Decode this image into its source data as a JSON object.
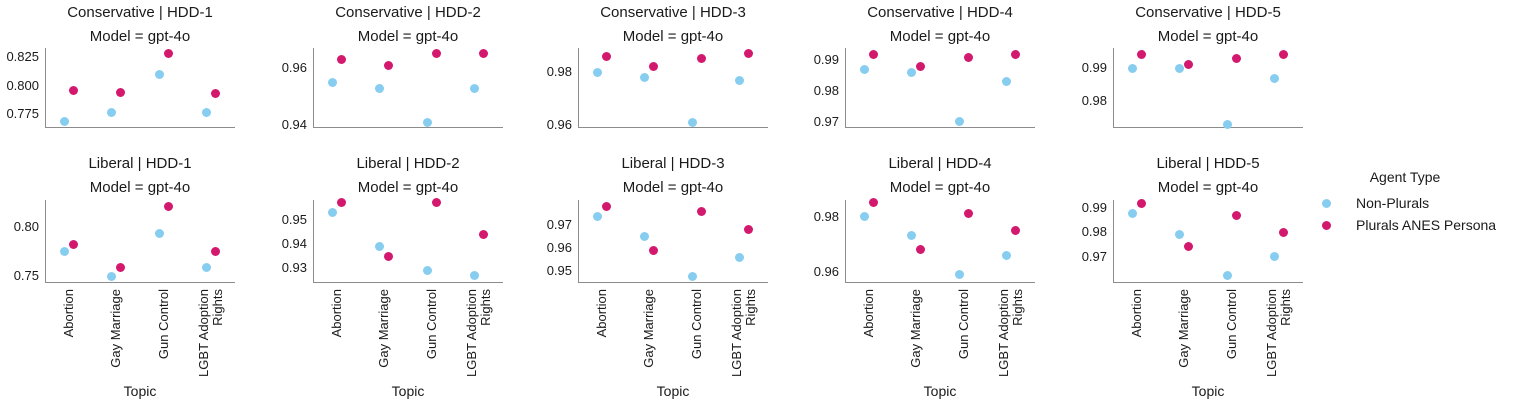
{
  "figure": {
    "xlabel": "Topic",
    "model_subtitle": "Model = gpt-4o",
    "categories": [
      "Abortion",
      "Gay Marriage",
      "Gun Control",
      "LGBT Adoption Rights"
    ],
    "category_display": [
      [
        "Abortion"
      ],
      [
        "Gay Marriage"
      ],
      [
        "Gun Control"
      ],
      [
        "LGBT Adoption",
        "Rights"
      ]
    ],
    "legend": {
      "title": "Agent Type",
      "entries": [
        {
          "label": "Non-Plurals",
          "color": "#87CDF0"
        },
        {
          "label": "Plurals ANES Persona",
          "color": "#D2196D"
        }
      ]
    },
    "colors": {
      "non_plurals": "#87CDF0",
      "plurals_anes_persona": "#D2196D",
      "spine": "#8c8c8c",
      "text": "#1a1a1a"
    }
  },
  "chart_data": [
    {
      "type": "scatter",
      "title": "Conservative | HDD-1",
      "subtitle": "Model = gpt-4o",
      "facet_row": "Conservative",
      "facet_col": "HDD-1",
      "grid_row": 0,
      "grid_col": 0,
      "categories": [
        "Abortion",
        "Gay Marriage",
        "Gun Control",
        "LGBT Adoption Rights"
      ],
      "ylim": [
        0.763,
        0.833
      ],
      "yticks": [
        0.775,
        0.8,
        0.825
      ],
      "ytick_labels": [
        "0.775",
        "0.800",
        "0.825"
      ],
      "series": [
        {
          "name": "Non-Plurals",
          "values": [
            0.769,
            0.777,
            0.81,
            0.777
          ]
        },
        {
          "name": "Plurals ANES Persona",
          "values": [
            0.796,
            0.794,
            0.828,
            0.793
          ]
        }
      ]
    },
    {
      "type": "scatter",
      "title": "Conservative | HDD-2",
      "subtitle": "Model = gpt-4o",
      "facet_row": "Conservative",
      "facet_col": "HDD-2",
      "grid_row": 0,
      "grid_col": 1,
      "categories": [
        "Abortion",
        "Gay Marriage",
        "Gun Control",
        "LGBT Adoption Rights"
      ],
      "ylim": [
        0.939,
        0.967
      ],
      "yticks": [
        0.94,
        0.96
      ],
      "ytick_labels": [
        "0.94",
        "0.96"
      ],
      "series": [
        {
          "name": "Non-Plurals",
          "values": [
            0.955,
            0.953,
            0.941,
            0.953
          ]
        },
        {
          "name": "Plurals ANES Persona",
          "values": [
            0.963,
            0.961,
            0.965,
            0.965
          ]
        }
      ]
    },
    {
      "type": "scatter",
      "title": "Conservative | HDD-3",
      "subtitle": "Model = gpt-4o",
      "facet_row": "Conservative",
      "facet_col": "HDD-3",
      "grid_row": 0,
      "grid_col": 2,
      "categories": [
        "Abortion",
        "Gay Marriage",
        "Gun Control",
        "LGBT Adoption Rights"
      ],
      "ylim": [
        0.959,
        0.989
      ],
      "yticks": [
        0.96,
        0.98
      ],
      "ytick_labels": [
        "0.96",
        "0.98"
      ],
      "series": [
        {
          "name": "Non-Plurals",
          "values": [
            0.98,
            0.978,
            0.961,
            0.977
          ]
        },
        {
          "name": "Plurals ANES Persona",
          "values": [
            0.986,
            0.982,
            0.985,
            0.987
          ]
        }
      ]
    },
    {
      "type": "scatter",
      "title": "Conservative | HDD-4",
      "subtitle": "Model = gpt-4o",
      "facet_row": "Conservative",
      "facet_col": "HDD-4",
      "grid_row": 0,
      "grid_col": 3,
      "categories": [
        "Abortion",
        "Gay Marriage",
        "Gun Control",
        "LGBT Adoption Rights"
      ],
      "ylim": [
        0.968,
        0.994
      ],
      "yticks": [
        0.97,
        0.98,
        0.99
      ],
      "ytick_labels": [
        "0.97",
        "0.98",
        "0.99"
      ],
      "series": [
        {
          "name": "Non-Plurals",
          "values": [
            0.987,
            0.986,
            0.97,
            0.983
          ]
        },
        {
          "name": "Plurals ANES Persona",
          "values": [
            0.992,
            0.988,
            0.991,
            0.992
          ]
        }
      ]
    },
    {
      "type": "scatter",
      "title": "Conservative | HDD-5",
      "subtitle": "Model = gpt-4o",
      "facet_row": "Conservative",
      "facet_col": "HDD-5",
      "grid_row": 0,
      "grid_col": 4,
      "categories": [
        "Abortion",
        "Gay Marriage",
        "Gun Control",
        "LGBT Adoption Rights"
      ],
      "ylim": [
        0.972,
        0.996
      ],
      "yticks": [
        0.98,
        0.99
      ],
      "ytick_labels": [
        "0.98",
        "0.99"
      ],
      "series": [
        {
          "name": "Non-Plurals",
          "values": [
            0.99,
            0.99,
            0.973,
            0.987
          ]
        },
        {
          "name": "Plurals ANES Persona",
          "values": [
            0.994,
            0.991,
            0.993,
            0.994
          ]
        }
      ]
    },
    {
      "type": "scatter",
      "title": "Liberal | HDD-1",
      "subtitle": "Model = gpt-4o",
      "facet_row": "Liberal",
      "facet_col": "HDD-1",
      "grid_row": 1,
      "grid_col": 0,
      "categories": [
        "Abortion",
        "Gay Marriage",
        "Gun Control",
        "LGBT Adoption Rights"
      ],
      "ylim": [
        0.743,
        0.827
      ],
      "yticks": [
        0.75,
        0.8
      ],
      "ytick_labels": [
        "0.75",
        "0.80"
      ],
      "series": [
        {
          "name": "Non-Plurals",
          "values": [
            0.775,
            0.75,
            0.793,
            0.759
          ]
        },
        {
          "name": "Plurals ANES Persona",
          "values": [
            0.782,
            0.759,
            0.82,
            0.775
          ]
        }
      ]
    },
    {
      "type": "scatter",
      "title": "Liberal | HDD-2",
      "subtitle": "Model = gpt-4o",
      "facet_row": "Liberal",
      "facet_col": "HDD-2",
      "grid_row": 1,
      "grid_col": 1,
      "categories": [
        "Abortion",
        "Gay Marriage",
        "Gun Control",
        "LGBT Adoption Rights"
      ],
      "ylim": [
        0.924,
        0.958
      ],
      "yticks": [
        0.93,
        0.94,
        0.95
      ],
      "ytick_labels": [
        "0.93",
        "0.94",
        "0.95"
      ],
      "series": [
        {
          "name": "Non-Plurals",
          "values": [
            0.953,
            0.939,
            0.929,
            0.927
          ]
        },
        {
          "name": "Plurals ANES Persona",
          "values": [
            0.957,
            0.935,
            0.957,
            0.944
          ]
        }
      ]
    },
    {
      "type": "scatter",
      "title": "Liberal | HDD-3",
      "subtitle": "Model = gpt-4o",
      "facet_row": "Liberal",
      "facet_col": "HDD-3",
      "grid_row": 1,
      "grid_col": 2,
      "categories": [
        "Abortion",
        "Gay Marriage",
        "Gun Control",
        "LGBT Adoption Rights"
      ],
      "ylim": [
        0.945,
        0.981
      ],
      "yticks": [
        0.95,
        0.96,
        0.97
      ],
      "ytick_labels": [
        "0.95",
        "0.96",
        "0.97"
      ],
      "series": [
        {
          "name": "Non-Plurals",
          "values": [
            0.974,
            0.965,
            0.948,
            0.956
          ]
        },
        {
          "name": "Plurals ANES Persona",
          "values": [
            0.978,
            0.959,
            0.976,
            0.968
          ]
        }
      ]
    },
    {
      "type": "scatter",
      "title": "Liberal | HDD-4",
      "subtitle": "Model = gpt-4o",
      "facet_row": "Liberal",
      "facet_col": "HDD-4",
      "grid_row": 1,
      "grid_col": 3,
      "categories": [
        "Abortion",
        "Gay Marriage",
        "Gun Control",
        "LGBT Adoption Rights"
      ],
      "ylim": [
        0.956,
        0.986
      ],
      "yticks": [
        0.96,
        0.98
      ],
      "ytick_labels": [
        "0.96",
        "0.98"
      ],
      "series": [
        {
          "name": "Non-Plurals",
          "values": [
            0.98,
            0.973,
            0.959,
            0.966
          ]
        },
        {
          "name": "Plurals ANES Persona",
          "values": [
            0.985,
            0.968,
            0.981,
            0.975
          ]
        }
      ]
    },
    {
      "type": "scatter",
      "title": "Liberal | HDD-5",
      "subtitle": "Model = gpt-4o",
      "facet_row": "Liberal",
      "facet_col": "HDD-5",
      "grid_row": 1,
      "grid_col": 4,
      "categories": [
        "Abortion",
        "Gay Marriage",
        "Gun Control",
        "LGBT Adoption Rights"
      ],
      "ylim": [
        0.959,
        0.9935
      ],
      "yticks": [
        0.97,
        0.98,
        0.99
      ],
      "ytick_labels": [
        "0.97",
        "0.98",
        "0.99"
      ],
      "series": [
        {
          "name": "Non-Plurals",
          "values": [
            0.988,
            0.979,
            0.962,
            0.97
          ]
        },
        {
          "name": "Plurals ANES Persona",
          "values": [
            0.992,
            0.974,
            0.987,
            0.98
          ]
        }
      ]
    }
  ]
}
